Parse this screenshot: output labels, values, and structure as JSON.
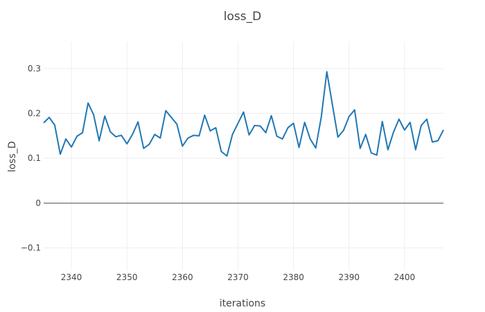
{
  "chart_data": {
    "type": "line",
    "title": "loss_D",
    "xlabel": "iterations",
    "ylabel": "loss_D",
    "xlim": [
      2335,
      2407
    ],
    "ylim": [
      -0.15,
      0.36
    ],
    "xticks": [
      2340,
      2350,
      2360,
      2370,
      2380,
      2390,
      2400
    ],
    "yticks": [
      -0.1,
      0,
      0.1,
      0.2,
      0.3
    ],
    "ytick_labels": [
      "−0.1",
      "0",
      "0.1",
      "0.2",
      "0.3"
    ],
    "grid": true,
    "zero_line": true,
    "series": [
      {
        "color": "#1f77b4",
        "x": [
          2335,
          2336,
          2337,
          2338,
          2339,
          2340,
          2341,
          2342,
          2343,
          2344,
          2345,
          2346,
          2347,
          2348,
          2349,
          2350,
          2351,
          2352,
          2353,
          2354,
          2355,
          2356,
          2357,
          2358,
          2359,
          2360,
          2361,
          2362,
          2363,
          2364,
          2365,
          2366,
          2367,
          2368,
          2369,
          2370,
          2371,
          2372,
          2373,
          2374,
          2375,
          2376,
          2377,
          2378,
          2379,
          2380,
          2381,
          2382,
          2383,
          2384,
          2385,
          2386,
          2387,
          2388,
          2389,
          2390,
          2391,
          2392,
          2393,
          2394,
          2395,
          2396,
          2397,
          2398,
          2399,
          2400,
          2401,
          2402,
          2403,
          2404,
          2405,
          2406,
          2407
        ],
        "y": [
          0.179,
          0.191,
          0.174,
          0.109,
          0.143,
          0.125,
          0.149,
          0.157,
          0.223,
          0.197,
          0.139,
          0.194,
          0.159,
          0.148,
          0.151,
          0.132,
          0.153,
          0.181,
          0.122,
          0.131,
          0.153,
          0.145,
          0.206,
          0.191,
          0.176,
          0.127,
          0.145,
          0.151,
          0.15,
          0.196,
          0.161,
          0.168,
          0.115,
          0.105,
          0.153,
          0.178,
          0.203,
          0.152,
          0.173,
          0.172,
          0.157,
          0.195,
          0.149,
          0.143,
          0.168,
          0.178,
          0.124,
          0.18,
          0.143,
          0.123,
          0.192,
          0.293,
          0.22,
          0.147,
          0.162,
          0.193,
          0.208,
          0.122,
          0.153,
          0.112,
          0.107,
          0.182,
          0.119,
          0.158,
          0.187,
          0.163,
          0.18,
          0.119,
          0.173,
          0.187,
          0.136,
          0.139,
          0.163
        ]
      }
    ]
  }
}
